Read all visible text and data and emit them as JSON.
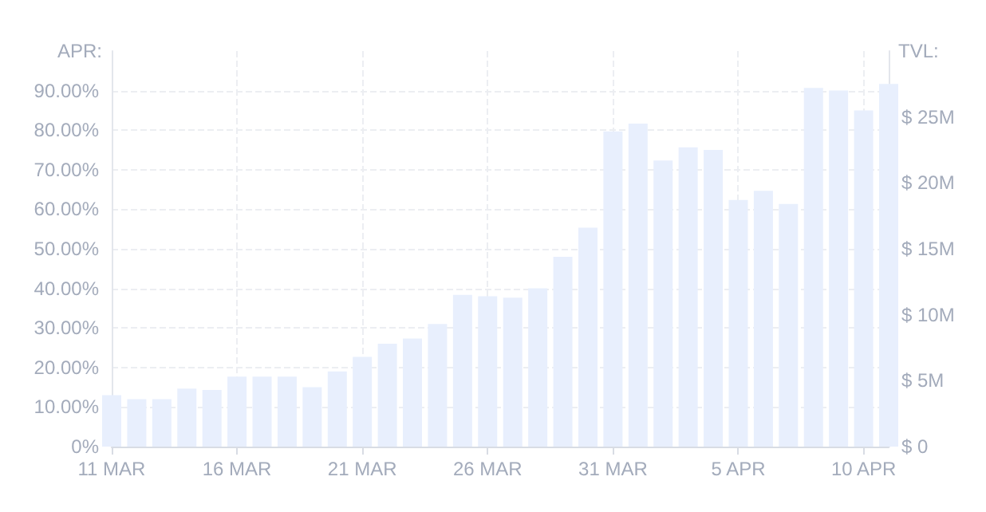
{
  "chart_data": {
    "type": "bar",
    "ylabel": "APR:",
    "y2label": "TVL:",
    "x": [
      "--03-11",
      "--03-12",
      "--03-13",
      "--03-14",
      "--03-15",
      "--03-16",
      "--03-17",
      "--03-18",
      "--03-19",
      "--03-20",
      "--03-21",
      "--03-22",
      "--03-23",
      "--03-24",
      "--03-25",
      "--03-26",
      "--03-27",
      "--03-28",
      "--03-29",
      "--03-30",
      "--03-31",
      "--04-01",
      "--04-02",
      "--04-03",
      "--04-04",
      "--04-05",
      "--04-06",
      "--04-07",
      "--04-08",
      "--04-09",
      "--04-10",
      "--04-11"
    ],
    "series": [
      {
        "color": "#e8effd",
        "axis": "y2",
        "values": [
          3.9,
          3.6,
          3.6,
          4.4,
          4.3,
          5.3,
          5.3,
          5.3,
          4.5,
          5.7,
          6.8,
          7.8,
          8.2,
          9.3,
          11.5,
          11.4,
          11.3,
          12.0,
          14.4,
          16.6,
          23.9,
          24.5,
          21.7,
          22.7,
          22.5,
          18.7,
          19.4,
          18.4,
          27.2,
          27.0,
          25.5,
          27.5
        ]
      }
    ],
    "xlim": [
      "--03-11",
      "--04-11"
    ],
    "xticks": [
      {
        "value": "--03-11",
        "label": "11 MAR"
      },
      {
        "value": "--03-16",
        "label": "16 MAR"
      },
      {
        "value": "--03-21",
        "label": "21 MAR"
      },
      {
        "value": "--03-26",
        "label": "26 MAR"
      },
      {
        "value": "--03-31",
        "label": "31 MAR"
      },
      {
        "value": "--04-05",
        "label": "5 APR"
      },
      {
        "value": "--04-10",
        "label": "10 APR"
      }
    ],
    "ylim": [
      0,
      100
    ],
    "yticks": [
      {
        "value": 0,
        "label": "0%"
      },
      {
        "value": 10,
        "label": "10.00%"
      },
      {
        "value": 20,
        "label": "20.00%"
      },
      {
        "value": 30,
        "label": "30.00%"
      },
      {
        "value": 40,
        "label": "40.00%"
      },
      {
        "value": 50,
        "label": "50.00%"
      },
      {
        "value": 60,
        "label": "60.00%"
      },
      {
        "value": 70,
        "label": "70.00%"
      },
      {
        "value": 80,
        "label": "80.00%"
      },
      {
        "value": 90,
        "label": "90.00%"
      }
    ],
    "y2lim": [
      0,
      30
    ],
    "y2ticks": [
      {
        "value": 0,
        "label": "$ 0"
      },
      {
        "value": 5,
        "label": "$ 5M"
      },
      {
        "value": 10,
        "label": "$ 10M"
      },
      {
        "value": 15,
        "label": "$ 15M"
      },
      {
        "value": 20,
        "label": "$ 20M"
      },
      {
        "value": 25,
        "label": "$ 25M"
      }
    ],
    "grid": true
  }
}
